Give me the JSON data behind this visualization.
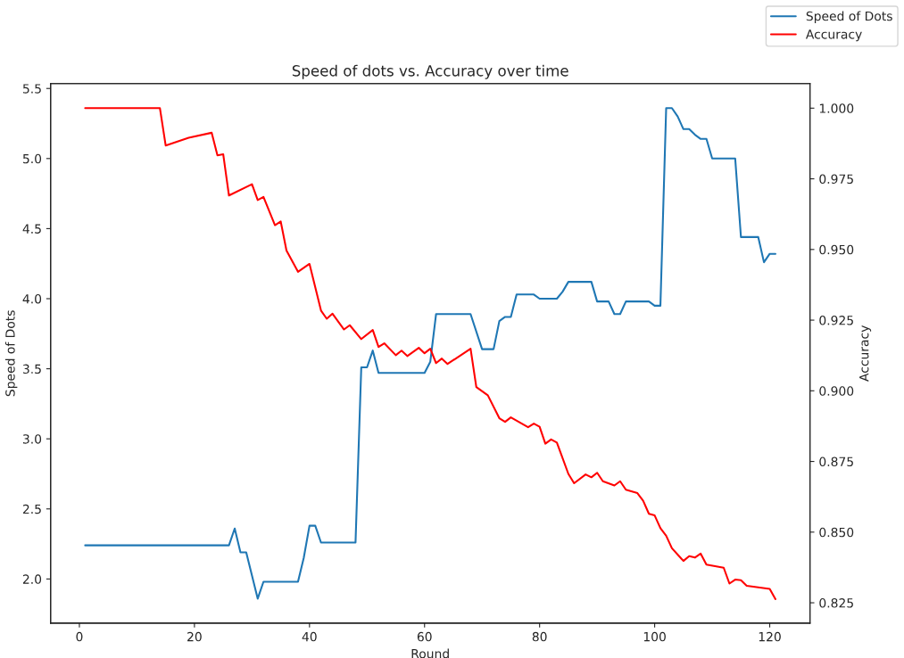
{
  "chart_data": {
    "type": "line",
    "title": "Speed of dots vs. Accuracy over time",
    "xlabel": "Round",
    "ylabel": "Speed of Dots",
    "y2label": "Accuracy",
    "xlim": [
      -5,
      127
    ],
    "xticks": [
      0,
      20,
      40,
      60,
      80,
      100,
      120
    ],
    "ylim": [
      1.685,
      5.535
    ],
    "yticks": [
      {
        "value": 2.0,
        "label": "2.0"
      },
      {
        "value": 2.5,
        "label": "2.5"
      },
      {
        "value": 3.0,
        "label": "3.0"
      },
      {
        "value": 3.5,
        "label": "3.5"
      },
      {
        "value": 4.0,
        "label": "4.0"
      },
      {
        "value": 4.5,
        "label": "4.5"
      },
      {
        "value": 5.0,
        "label": "5.0"
      },
      {
        "value": 5.5,
        "label": "5.5"
      }
    ],
    "y2lim": [
      0.8178,
      1.0087
    ],
    "y2ticks": [
      {
        "value": 0.825,
        "label": "0.825"
      },
      {
        "value": 0.85,
        "label": "0.850"
      },
      {
        "value": 0.875,
        "label": "0.875"
      },
      {
        "value": 0.9,
        "label": "0.900"
      },
      {
        "value": 0.925,
        "label": "0.925"
      },
      {
        "value": 0.95,
        "label": "0.950"
      },
      {
        "value": 0.975,
        "label": "0.975"
      },
      {
        "value": 1.0,
        "label": "1.000"
      }
    ],
    "legend": "top right",
    "grid": false,
    "marker": "none",
    "line_style": "solid",
    "series": [
      {
        "name": "Speed of Dots",
        "color": "#1f77b4",
        "x": [
          1,
          26,
          27,
          28,
          29,
          31,
          32,
          38,
          39,
          40,
          41,
          42,
          48,
          49,
          50,
          51,
          52,
          60,
          61,
          62,
          68,
          70,
          72,
          73,
          74,
          75,
          76,
          79,
          80,
          83,
          84,
          85,
          89,
          90,
          92,
          93,
          94,
          95,
          99,
          100,
          101,
          102,
          103,
          104,
          105,
          106,
          107,
          108,
          109,
          110,
          114,
          115,
          118,
          119,
          120,
          121
        ],
        "values": [
          2.24,
          2.24,
          2.36,
          2.19,
          2.19,
          1.86,
          1.98,
          1.98,
          2.15,
          2.38,
          2.38,
          2.26,
          2.26,
          3.51,
          3.51,
          3.63,
          3.47,
          3.47,
          3.55,
          3.89,
          3.89,
          3.64,
          3.64,
          3.84,
          3.87,
          3.87,
          4.03,
          4.03,
          4.0,
          4.0,
          4.05,
          4.12,
          4.12,
          3.98,
          3.98,
          3.89,
          3.89,
          3.98,
          3.98,
          3.95,
          3.95,
          5.36,
          5.36,
          5.3,
          5.21,
          5.21,
          5.17,
          5.14,
          5.14,
          5.0,
          5.0,
          4.44,
          4.44,
          4.26,
          4.32,
          4.32
        ]
      },
      {
        "name": "Accuracy",
        "color": "#ff0000",
        "axis": "y2",
        "x": [
          1,
          14,
          15,
          19,
          23,
          24,
          25,
          26,
          30,
          31,
          32,
          34,
          35,
          36,
          38,
          40,
          42,
          43,
          44,
          46,
          47,
          49,
          51,
          52,
          53,
          55,
          56,
          57,
          59,
          60,
          61,
          62,
          63,
          64,
          68,
          69,
          71,
          73,
          74,
          75,
          78,
          79,
          80,
          81,
          82,
          83,
          85,
          86,
          88,
          89,
          90,
          91,
          93,
          94,
          95,
          97,
          98,
          99,
          100,
          101,
          102,
          103,
          105,
          106,
          107,
          108,
          109,
          112,
          113,
          114,
          115,
          116,
          120,
          121
        ],
        "values": [
          1.0,
          1.0,
          0.9868,
          0.9895,
          0.9913,
          0.9833,
          0.9837,
          0.9691,
          0.9731,
          0.9675,
          0.9686,
          0.9586,
          0.9599,
          0.9496,
          0.9421,
          0.9449,
          0.9284,
          0.9255,
          0.9273,
          0.9217,
          0.9232,
          0.9183,
          0.9215,
          0.9155,
          0.9168,
          0.9126,
          0.9142,
          0.9123,
          0.9152,
          0.9133,
          0.9149,
          0.9098,
          0.9114,
          0.9095,
          0.9149,
          0.9013,
          0.8984,
          0.8903,
          0.889,
          0.8906,
          0.8871,
          0.8884,
          0.8873,
          0.8813,
          0.8828,
          0.8817,
          0.8706,
          0.8673,
          0.8704,
          0.8694,
          0.871,
          0.868,
          0.8665,
          0.868,
          0.865,
          0.8638,
          0.8611,
          0.8565,
          0.8559,
          0.8514,
          0.8487,
          0.8443,
          0.8398,
          0.8415,
          0.841,
          0.8424,
          0.8385,
          0.8374,
          0.8318,
          0.8332,
          0.833,
          0.831,
          0.8299,
          0.8263
        ]
      }
    ]
  }
}
